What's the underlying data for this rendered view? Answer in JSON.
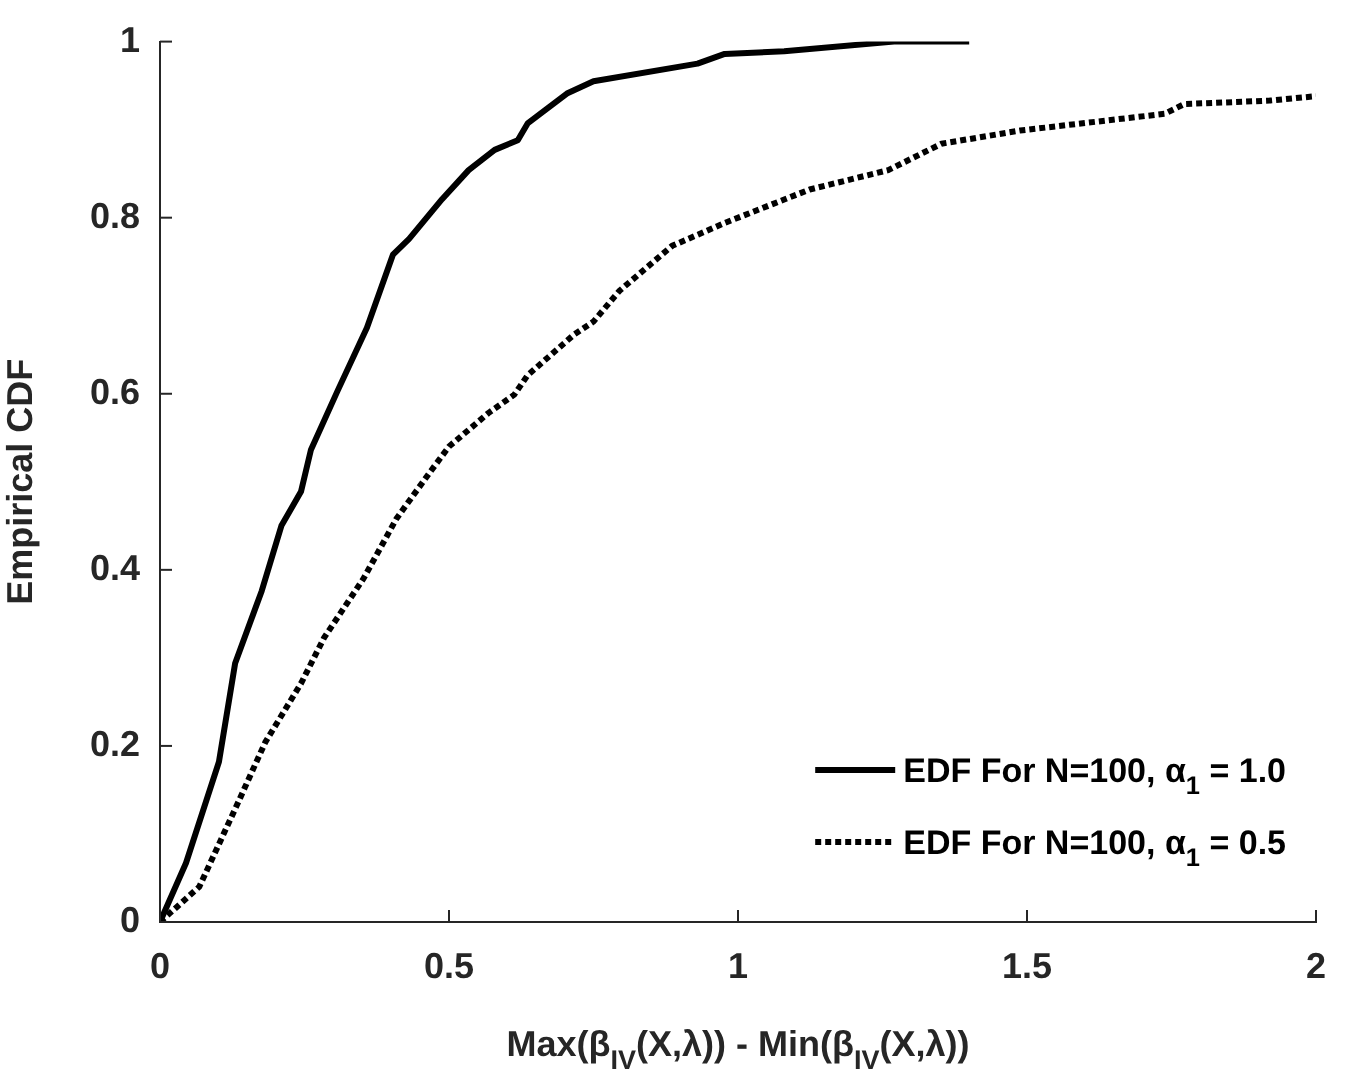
{
  "chart_data": {
    "type": "line",
    "xlabel": "Max(β$_{IV}$(X,λ)) - Min(β$_{IV}$(X,λ))",
    "ylabel": "Empirical CDF",
    "xlim": [
      0,
      2
    ],
    "xticks": [
      0,
      0.5,
      1,
      1.5,
      2
    ],
    "ylim": [
      0,
      1
    ],
    "yticks": [
      0,
      0.2,
      0.4,
      0.6,
      0.8,
      1
    ],
    "grid": false,
    "legend": "bottom right",
    "marker": "none",
    "series": [
      {
        "name": "EDF For N=100, α$_{1}$ = 1.0",
        "color": "#000000",
        "line_style": "solid",
        "x": [
          0,
          0.045,
          0.102,
          0.13,
          0.176,
          0.21,
          0.244,
          0.261,
          0.307,
          0.358,
          0.403,
          0.431,
          0.488,
          0.534,
          0.579,
          0.619,
          0.636,
          0.704,
          0.75,
          0.93,
          0.977,
          1.08,
          1.27,
          1.4
        ],
        "values": [
          0,
          0.067,
          0.182,
          0.294,
          0.376,
          0.45,
          0.489,
          0.536,
          0.603,
          0.675,
          0.758,
          0.776,
          0.821,
          0.854,
          0.877,
          0.888,
          0.907,
          0.941,
          0.955,
          0.975,
          0.986,
          0.989,
          1,
          1
        ]
      },
      {
        "name": "EDF For N=100, α$_{1}$ = 0.5",
        "color": "#000000",
        "line_style": "dotted",
        "x": [
          0,
          0.068,
          0.136,
          0.182,
          0.244,
          0.284,
          0.352,
          0.409,
          0.466,
          0.5,
          0.568,
          0.613,
          0.636,
          0.716,
          0.75,
          0.795,
          0.886,
          0.977,
          1.124,
          1.26,
          1.352,
          1.488,
          1.738,
          1.772,
          1.92,
          2
        ],
        "values": [
          0,
          0.04,
          0.137,
          0.204,
          0.271,
          0.323,
          0.39,
          0.458,
          0.51,
          0.54,
          0.578,
          0.599,
          0.621,
          0.667,
          0.682,
          0.717,
          0.768,
          0.794,
          0.832,
          0.854,
          0.884,
          0.899,
          0.918,
          0.929,
          0.933,
          0.938
        ]
      }
    ]
  }
}
